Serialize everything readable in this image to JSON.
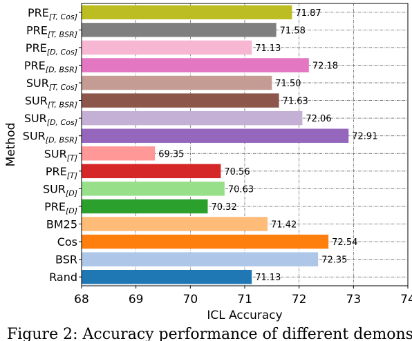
{
  "chart_data": {
    "type": "bar",
    "orientation": "horizontal",
    "xlabel": "ICL Accuracy",
    "ylabel": "Method",
    "xlim": [
      68,
      74
    ],
    "xticks": [
      "68",
      "69",
      "70",
      "71",
      "72",
      "73",
      "74"
    ],
    "grid": true,
    "categories": [
      {
        "base": "PRE",
        "sub": "[T, Cos]",
        "value": 71.87,
        "value_label": "71.87",
        "color": "#bcbd22"
      },
      {
        "base": "PRE",
        "sub": "[T, BSR]",
        "value": 71.58,
        "value_label": "71.58",
        "color": "#7f7f7f"
      },
      {
        "base": "PRE",
        "sub": "[D, Cos]",
        "value": 71.13,
        "value_label": "71.13",
        "color": "#f7b6d2"
      },
      {
        "base": "PRE",
        "sub": "[D, BSR]",
        "value": 72.18,
        "value_label": "72.18",
        "color": "#e377c2"
      },
      {
        "base": "SUR",
        "sub": "[T, Cos]",
        "value": 71.5,
        "value_label": "71.50",
        "color": "#c49c94"
      },
      {
        "base": "SUR",
        "sub": "[T, BSR]",
        "value": 71.63,
        "value_label": "71.63",
        "color": "#8c564b"
      },
      {
        "base": "SUR",
        "sub": "[D, Cos]",
        "value": 72.06,
        "value_label": "72.06",
        "color": "#c5b0d5"
      },
      {
        "base": "SUR",
        "sub": "[D, BSR]",
        "value": 72.91,
        "value_label": "72.91",
        "color": "#9467bd"
      },
      {
        "base": "SUR",
        "sub": "[T]",
        "value": 69.35,
        "value_label": "69.35",
        "color": "#ff9896"
      },
      {
        "base": "PRE",
        "sub": "[T]",
        "value": 70.56,
        "value_label": "70.56",
        "color": "#d62728"
      },
      {
        "base": "SUR",
        "sub": "[D]",
        "value": 70.63,
        "value_label": "70.63",
        "color": "#98df8a"
      },
      {
        "base": "PRE",
        "sub": "[D]",
        "value": 70.32,
        "value_label": "70.32",
        "color": "#2ca02c"
      },
      {
        "base": "BM25",
        "sub": "",
        "value": 71.42,
        "value_label": "71.42",
        "color": "#ffbb78"
      },
      {
        "base": "Cos",
        "sub": "",
        "value": 72.54,
        "value_label": "72.54",
        "color": "#ff7f0e"
      },
      {
        "base": "BSR",
        "sub": "",
        "value": 72.35,
        "value_label": "72.35",
        "color": "#aec7e8"
      },
      {
        "base": "Rand",
        "sub": "",
        "value": 71.13,
        "value_label": "71.13",
        "color": "#1f77b4"
      }
    ]
  },
  "caption": "Figure 2: Accuracy performance of different demonst"
}
